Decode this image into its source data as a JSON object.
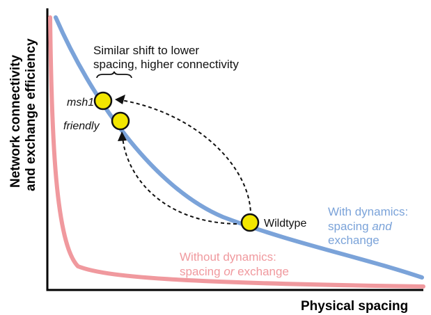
{
  "axes": {
    "x_label": "Physical spacing",
    "y_label_line1": "Network connectivity",
    "y_label_line2": "and exchange efficiency"
  },
  "annotation": {
    "line1": "Similar shift to lower",
    "line2": "spacing, higher connectivity"
  },
  "points": {
    "msh1": "msh1",
    "friendly": "friendly",
    "wildtype": "Wildtype"
  },
  "curve_with": {
    "line1": "With dynamics:",
    "line2_pre": "spacing ",
    "line2_em": "and",
    "line3": "exchange"
  },
  "curve_without": {
    "line1": "Without dynamics:",
    "line2_pre": "spacing ",
    "line2_em": "or",
    "line2_post": " exchange"
  },
  "colors": {
    "with_curve": "#7ba3d9",
    "without_curve": "#f0999e",
    "point_fill": "#f2e600",
    "axis": "#000000"
  }
}
